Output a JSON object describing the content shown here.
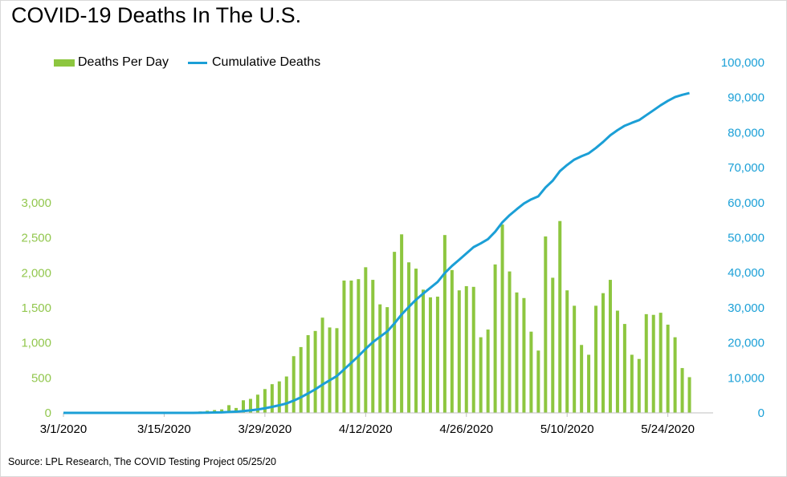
{
  "chart_data": {
    "type": "bar+line",
    "title": "COVID-19 Deaths In The U.S.",
    "source": "Source: LPL Research, The COVID Testing Project 05/25/20",
    "legend": {
      "placement": "top-left"
    },
    "x": {
      "start_date": "3/1/2020",
      "tick_labels": [
        "3/1/2020",
        "3/15/2020",
        "3/29/2020",
        "4/12/2020",
        "4/26/2020",
        "5/10/2020",
        "5/24/2020"
      ]
    },
    "y_left": {
      "min": 0,
      "max": 3000,
      "ticks": [
        "0",
        "500",
        "1,000",
        "1,500",
        "2,000",
        "2,500",
        "3,000"
      ]
    },
    "y_right": {
      "min": 0,
      "max": 100000,
      "ticks": [
        "0",
        "10,000",
        "20,000",
        "30,000",
        "40,000",
        "50,000",
        "60,000",
        "70,000",
        "80,000",
        "90,000",
        "100,000"
      ]
    },
    "grid": false,
    "series": [
      {
        "name": "Deaths Per Day",
        "type": "bar",
        "axis": "left",
        "color": "#8dc63f",
        "values": [
          0,
          0,
          0,
          0,
          0,
          0,
          0,
          0,
          0,
          0,
          0,
          0,
          0,
          0,
          0,
          0,
          0,
          0,
          10,
          20,
          30,
          40,
          50,
          110,
          70,
          180,
          200,
          260,
          340,
          410,
          450,
          520,
          810,
          940,
          1110,
          1170,
          1360,
          1220,
          1210,
          1890,
          1890,
          1910,
          2080,
          1900,
          1550,
          1510,
          2300,
          2550,
          2150,
          2060,
          1760,
          1650,
          1660,
          2540,
          2040,
          1750,
          1810,
          1800,
          1080,
          1190,
          2120,
          2690,
          2020,
          1720,
          1640,
          1160,
          890,
          2520,
          1930,
          2740,
          1750,
          1530,
          970,
          830,
          1530,
          1710,
          1900,
          1460,
          1270,
          830,
          770,
          1410,
          1400,
          1430,
          1260,
          1080,
          640,
          510
        ]
      },
      {
        "name": "Cumulative Deaths",
        "type": "line",
        "axis": "right",
        "color": "#1b9fd6",
        "values": [
          0,
          0,
          0,
          0,
          0,
          0,
          0,
          0,
          0,
          0,
          0,
          0,
          0,
          0,
          0,
          0,
          0,
          0,
          10,
          30,
          60,
          100,
          150,
          260,
          330,
          510,
          710,
          970,
          1310,
          1720,
          2170,
          2690,
          3500,
          4440,
          5550,
          6720,
          8080,
          9300,
          10510,
          12400,
          14290,
          16200,
          18280,
          20180,
          21730,
          23240,
          25540,
          28090,
          30240,
          32300,
          34060,
          35710,
          37370,
          39910,
          41950,
          43700,
          45510,
          47310,
          48390,
          49580,
          51700,
          54390,
          56410,
          58130,
          59770,
          60930,
          61820,
          64340,
          66270,
          69010,
          70760,
          72290,
          73260,
          74090,
          75620,
          77330,
          79230,
          80690,
          81960,
          82790,
          83560,
          84970,
          86370,
          87800,
          89060,
          90140,
          90780,
          91290
        ]
      }
    ]
  }
}
